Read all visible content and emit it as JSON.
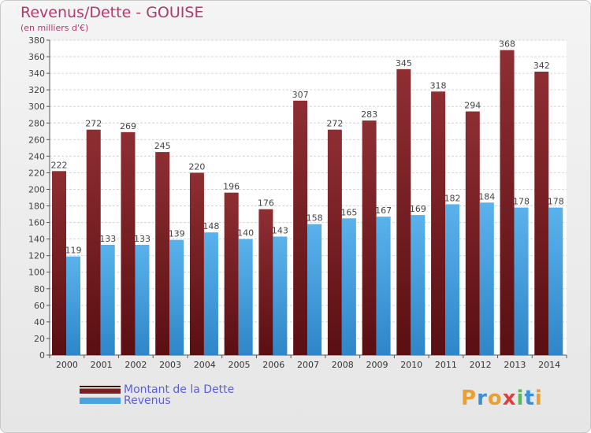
{
  "chart_data": {
    "type": "bar",
    "title": "Revenus/Dette - GOUISE",
    "subtitle": "(en milliers d'€)",
    "categories": [
      "2000",
      "2001",
      "2002",
      "2003",
      "2004",
      "2005",
      "2006",
      "2007",
      "2008",
      "2009",
      "2010",
      "2011",
      "2012",
      "2013",
      "2014"
    ],
    "series": [
      {
        "name": "Montant de la Dette",
        "color": "#7a1f24",
        "values": [
          222,
          272,
          269,
          245,
          220,
          196,
          176,
          307,
          272,
          283,
          345,
          318,
          294,
          368,
          342
        ]
      },
      {
        "name": "Revenus",
        "color": "#4aa3e0",
        "values": [
          119,
          133,
          133,
          139,
          148,
          140,
          143,
          158,
          165,
          167,
          169,
          182,
          184,
          178,
          178
        ]
      }
    ],
    "ylim": [
      0,
      380
    ],
    "yticks": [
      0,
      20,
      40,
      60,
      80,
      100,
      120,
      140,
      160,
      180,
      200,
      220,
      240,
      260,
      280,
      300,
      320,
      340,
      360,
      380
    ],
    "grid": true,
    "legend_position": "bottom-left"
  },
  "logo": {
    "text": "Proxiti"
  }
}
